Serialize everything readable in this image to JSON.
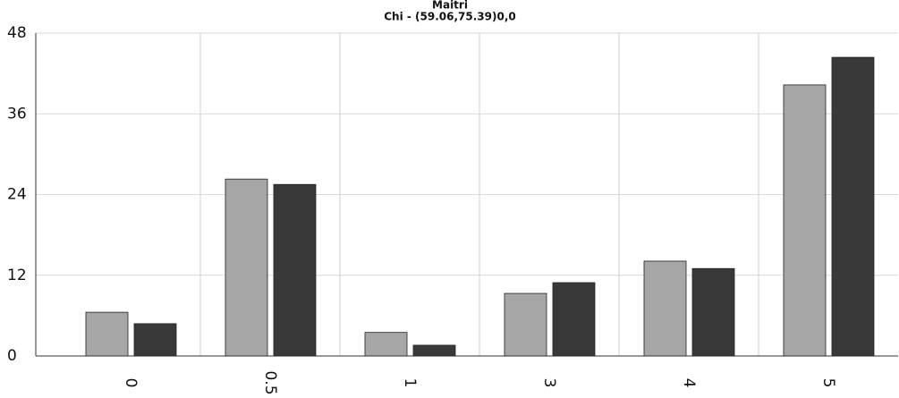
{
  "chart_data": {
    "type": "bar",
    "title": "Maitri",
    "subtitle": "Chi - (59.06,75.39)0,0",
    "categories": [
      "0",
      "0.5",
      "1",
      "3",
      "4",
      "5"
    ],
    "series": [
      {
        "color": "#a6a6a6",
        "values": [
          6.5,
          26.3,
          3.5,
          9.3,
          14.1,
          40.3
        ]
      },
      {
        "color": "#393939",
        "values": [
          4.8,
          25.5,
          1.6,
          10.9,
          13.0,
          44.4
        ]
      }
    ],
    "ylim": [
      0,
      48
    ],
    "yticks": [
      0,
      12,
      24,
      36,
      48
    ],
    "grid": true
  }
}
